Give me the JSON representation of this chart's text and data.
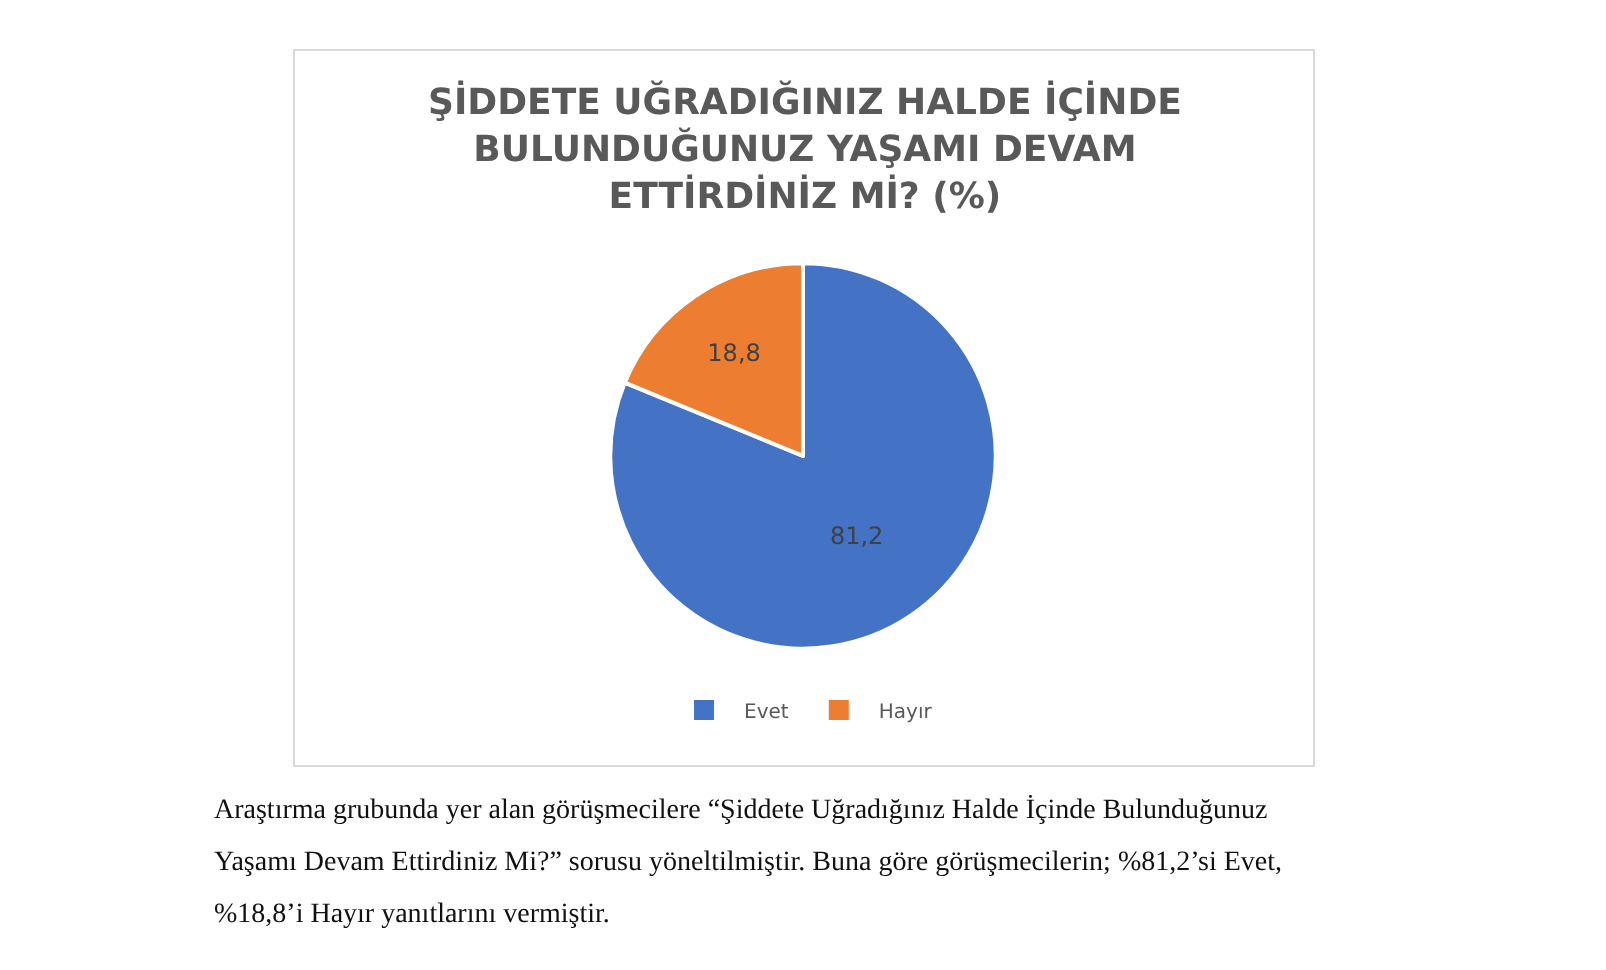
{
  "chart_data": {
    "type": "pie",
    "title": "ŞİDDETE UĞRADIĞINIZ HALDE İÇİNDE\nBULUNDUĞUNUZ YAŞAMI DEVAM\nETTİRDİNİZ Mİ? (%)",
    "categories": [
      "Evet",
      "Hayır"
    ],
    "values": [
      81.2,
      18.8
    ],
    "colors": [
      "#4472c4",
      "#ed7d31"
    ],
    "value_labels": [
      "81,2",
      "18,8"
    ],
    "legend": "bottom",
    "annotations": [
      "Araştırma grubunda yer alan görüşmecilere “Şiddete Uğradığınız Halde İçinde Bulunduğunuz",
      "Yaşamı Devam Ettirdiniz Mi?” sorusu yöneltilmiştir. Buna göre görüşmecilerin; %81,2’si Evet,",
      "%18,8’i Hayır yanıtlarını vermiştir."
    ]
  }
}
